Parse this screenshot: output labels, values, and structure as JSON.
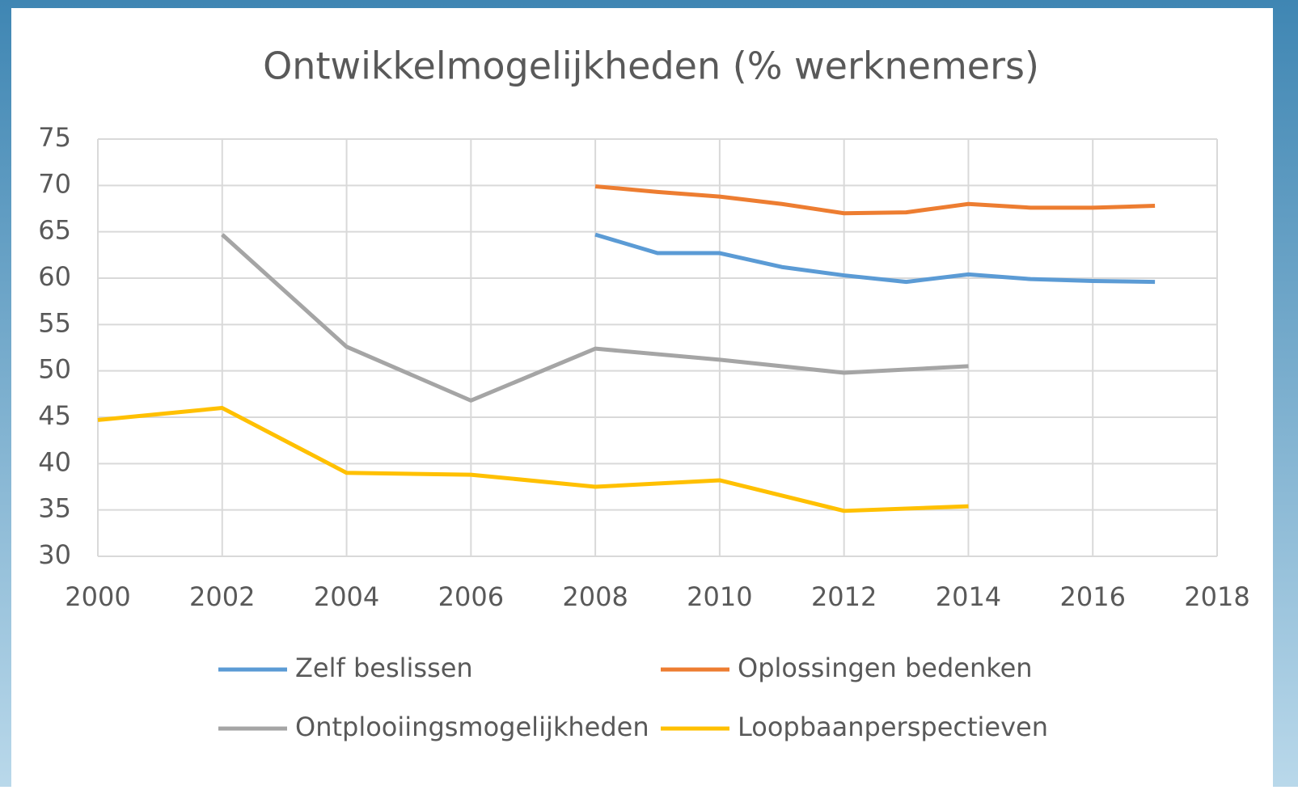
{
  "chart_data": {
    "type": "line",
    "title": "Ontwikkelmogelijkheden (% werknemers)",
    "xlim": [
      2000,
      2018
    ],
    "xticks": [
      2000,
      2002,
      2004,
      2006,
      2008,
      2010,
      2012,
      2014,
      2016,
      2018
    ],
    "ylim": [
      30,
      75
    ],
    "yticks": [
      30,
      35,
      40,
      45,
      50,
      55,
      60,
      65,
      70,
      75
    ],
    "grid": true,
    "legend": "bottom",
    "series": [
      {
        "name": "Zelf beslissen",
        "color": "#5b9bd5",
        "x": [
          2008,
          2009,
          2010,
          2011,
          2012,
          2013,
          2014,
          2015,
          2016,
          2017
        ],
        "values": [
          64.7,
          62.7,
          62.7,
          61.2,
          60.3,
          59.6,
          60.4,
          59.9,
          59.7,
          59.6
        ]
      },
      {
        "name": "Oplossingen bedenken",
        "color": "#ed7d31",
        "x": [
          2008,
          2009,
          2010,
          2011,
          2012,
          2013,
          2014,
          2015,
          2016,
          2017
        ],
        "values": [
          69.9,
          69.3,
          68.8,
          68.0,
          67.0,
          67.1,
          68.0,
          67.6,
          67.6,
          67.8
        ]
      },
      {
        "name": "Ontplooiingsmogelijkheden",
        "color": "#a5a5a5",
        "x": [
          2002,
          2004,
          2006,
          2008,
          2010,
          2012,
          2014
        ],
        "values": [
          64.7,
          52.6,
          46.8,
          52.4,
          51.2,
          49.8,
          50.5
        ]
      },
      {
        "name": "Loopbaanperspectieven",
        "color": "#ffc000",
        "x": [
          2000,
          2002,
          2004,
          2006,
          2008,
          2010,
          2012,
          2014
        ],
        "values": [
          44.7,
          46.0,
          39.0,
          38.8,
          37.5,
          38.2,
          34.9,
          35.4
        ]
      }
    ]
  }
}
